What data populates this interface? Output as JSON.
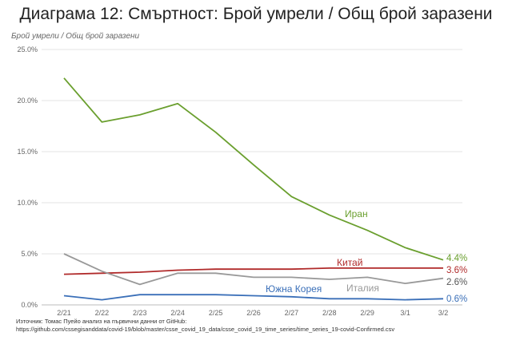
{
  "chart_data": {
    "type": "line",
    "title": "Диаграма 12: Смъртност: Брой умрели / Общ брой заразени",
    "ylabel": "Брой умрели / Общ брой заразени",
    "xlabel": "",
    "categories": [
      "2/21",
      "2/22",
      "2/23",
      "2/24",
      "2/25",
      "2/26",
      "2/27",
      "2/28",
      "2/29",
      "3/1",
      "3/2"
    ],
    "ylim": [
      0,
      25
    ],
    "yticks": [
      "0.0%",
      "5.0%",
      "10.0%",
      "15.0%",
      "20.0%",
      "25.0%"
    ],
    "grid": "horizontal",
    "series": [
      {
        "name": "Иран",
        "color": "#6a9f2e",
        "values": [
          22.2,
          17.9,
          18.6,
          19.7,
          16.9,
          13.7,
          10.6,
          8.8,
          7.3,
          5.6,
          4.4
        ],
        "end_label": "4.4%"
      },
      {
        "name": "Китай",
        "color": "#b02a2a",
        "values": [
          3.0,
          3.1,
          3.2,
          3.4,
          3.5,
          3.5,
          3.5,
          3.6,
          3.6,
          3.6,
          3.6
        ],
        "end_label": "3.6%"
      },
      {
        "name": "Италия",
        "color": "#999999",
        "values": [
          5.0,
          3.3,
          2.0,
          3.1,
          3.1,
          2.7,
          2.7,
          2.5,
          2.7,
          2.1,
          2.6
        ],
        "end_label": "2.6%"
      },
      {
        "name": "Южна Корея",
        "color": "#3a6fb8",
        "values": [
          0.9,
          0.5,
          1.0,
          1.0,
          1.0,
          0.9,
          0.8,
          0.6,
          0.6,
          0.5,
          0.6
        ],
        "end_label": "0.6%"
      }
    ]
  },
  "source": {
    "line1": "Източник: Томас Пуейо анализ на първични данни от GitHub:",
    "line2": "https://github.com/cssegisanddata/covid-19/blob/master/csse_covid_19_data/csse_covid_19_time_series/time_series_19-covid-Confirmed.csv"
  }
}
